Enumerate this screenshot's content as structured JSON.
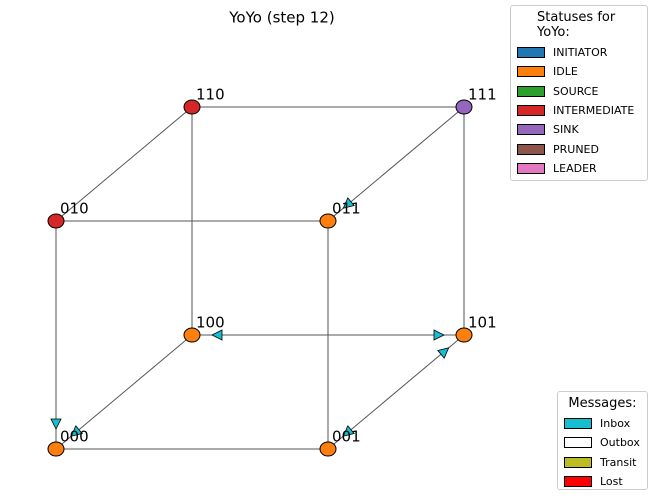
{
  "title": "YoYo (step 12)",
  "nodes": [
    {
      "label": "110",
      "color": "#d62728"
    },
    {
      "label": "111",
      "color": "#9467bd"
    },
    {
      "label": "010",
      "color": "#d62728"
    },
    {
      "label": "011",
      "color": "#ff7f0e"
    },
    {
      "label": "100",
      "color": "#ff7f0e"
    },
    {
      "label": "101",
      "color": "#ff7f0e"
    },
    {
      "label": "000",
      "color": "#ff7f0e"
    },
    {
      "label": "001",
      "color": "#ff7f0e"
    }
  ],
  "status_legend": {
    "title": "Statuses for\nYoYo:",
    "items": [
      {
        "label": "INITIATOR",
        "color": "#1f77b4"
      },
      {
        "label": "IDLE",
        "color": "#ff7f0e"
      },
      {
        "label": "SOURCE",
        "color": "#2ca02c"
      },
      {
        "label": "INTERMEDIATE",
        "color": "#d62728"
      },
      {
        "label": "SINK",
        "color": "#9467bd"
      },
      {
        "label": "PRUNED",
        "color": "#8c564b"
      },
      {
        "label": "LEADER",
        "color": "#e377c2"
      }
    ]
  },
  "message_legend": {
    "title": "Messages:",
    "items": [
      {
        "label": "Inbox",
        "color": "#17becf"
      },
      {
        "label": "Outbox",
        "color": "#ffffff"
      },
      {
        "label": "Transit",
        "color": "#bcbd22"
      },
      {
        "label": "Lost",
        "color": "#ff0000"
      }
    ]
  },
  "message_color": "#17becf"
}
